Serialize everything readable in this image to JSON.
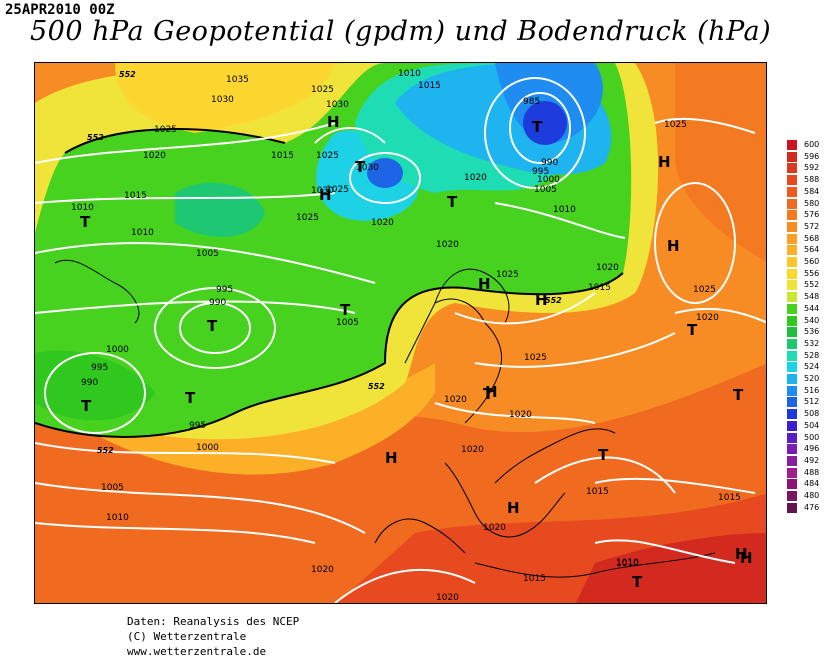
{
  "header": {
    "date": "25APR2010 00Z",
    "title": "500 hPa Geopotential (gpdm) und Bodendruck (hPa)"
  },
  "legend": {
    "values": [
      600,
      596,
      592,
      588,
      584,
      580,
      576,
      572,
      568,
      564,
      560,
      556,
      552,
      548,
      544,
      540,
      536,
      532,
      528,
      524,
      520,
      516,
      512,
      508,
      504,
      500,
      496,
      492,
      488,
      484,
      480,
      476
    ],
    "colors": [
      "#c8141e",
      "#d22a1e",
      "#dc3a1e",
      "#e64a1e",
      "#ec5a1e",
      "#f06a20",
      "#f47a22",
      "#f88c24",
      "#fa9e26",
      "#fcb028",
      "#fec42c",
      "#fed630",
      "#f0e43a",
      "#c8e632",
      "#46d21e",
      "#30c81e",
      "#20be3c",
      "#1ec873",
      "#1edcb4",
      "#1ed2e6",
      "#1eb4f0",
      "#1e8cf0",
      "#1e64e6",
      "#1e3cdc",
      "#3c1ed2",
      "#5a1ec8",
      "#781eb4",
      "#8c1ea0",
      "#a01e8c",
      "#8c1478",
      "#781464",
      "#641450"
    ]
  },
  "map": {
    "pressure_labels": [
      {
        "text": "1035"
      },
      {
        "text": "1030"
      },
      {
        "text": "1025"
      },
      {
        "text": "1020"
      },
      {
        "text": "1025"
      },
      {
        "text": "1030"
      },
      {
        "text": "1015"
      },
      {
        "text": "1025"
      },
      {
        "text": "1010"
      },
      {
        "text": "1015"
      },
      {
        "text": "985"
      },
      {
        "text": "990"
      },
      {
        "text": "995"
      },
      {
        "text": "1000"
      },
      {
        "text": "1005"
      },
      {
        "text": "1010"
      },
      {
        "text": "1025"
      },
      {
        "text": "1025"
      },
      {
        "text": "1020"
      },
      {
        "text": "1030"
      },
      {
        "text": "1030"
      },
      {
        "text": "1025"
      },
      {
        "text": "1020"
      },
      {
        "text": "1020"
      },
      {
        "text": "1015"
      },
      {
        "text": "1010"
      },
      {
        "text": "1010"
      },
      {
        "text": "1005"
      },
      {
        "text": "995"
      },
      {
        "text": "990"
      },
      {
        "text": "1005"
      },
      {
        "text": "1000"
      },
      {
        "text": "995"
      },
      {
        "text": "990"
      },
      {
        "text": "995"
      },
      {
        "text": "1000"
      },
      {
        "text": "1005"
      },
      {
        "text": "1010"
      },
      {
        "text": "1025"
      },
      {
        "text": "1020"
      },
      {
        "text": "1020"
      },
      {
        "text": "1020"
      },
      {
        "text": "1020"
      },
      {
        "text": "1025"
      },
      {
        "text": "1020"
      },
      {
        "text": "1015"
      },
      {
        "text": "1020"
      },
      {
        "text": "1015"
      },
      {
        "text": "1020"
      },
      {
        "text": "1015"
      },
      {
        "text": "1010"
      },
      {
        "text": "1015"
      },
      {
        "text": "1020"
      },
      {
        "text": "1010"
      },
      {
        "text": "1025"
      }
    ],
    "centers": [
      {
        "type": "H"
      },
      {
        "type": "H"
      },
      {
        "type": "T"
      },
      {
        "type": "T"
      },
      {
        "type": "T"
      },
      {
        "type": "T"
      },
      {
        "type": "T"
      },
      {
        "type": "T"
      },
      {
        "type": "T"
      },
      {
        "type": "H"
      },
      {
        "type": "H"
      },
      {
        "type": "H"
      },
      {
        "type": "H"
      },
      {
        "type": "T"
      },
      {
        "type": "T"
      },
      {
        "type": "H"
      },
      {
        "type": "T"
      },
      {
        "type": "T"
      },
      {
        "type": "H"
      },
      {
        "type": "T"
      },
      {
        "type": "H"
      },
      {
        "type": "T"
      },
      {
        "type": "H"
      },
      {
        "type": "H"
      }
    ],
    "contour_552_labels": [
      "552",
      "552",
      "552",
      "552",
      "552"
    ]
  },
  "footer": {
    "line1": "Daten: Reanalysis des NCEP",
    "line2": "(C) Wetterzentrale",
    "line3": "www.wetterzentrale.de"
  }
}
